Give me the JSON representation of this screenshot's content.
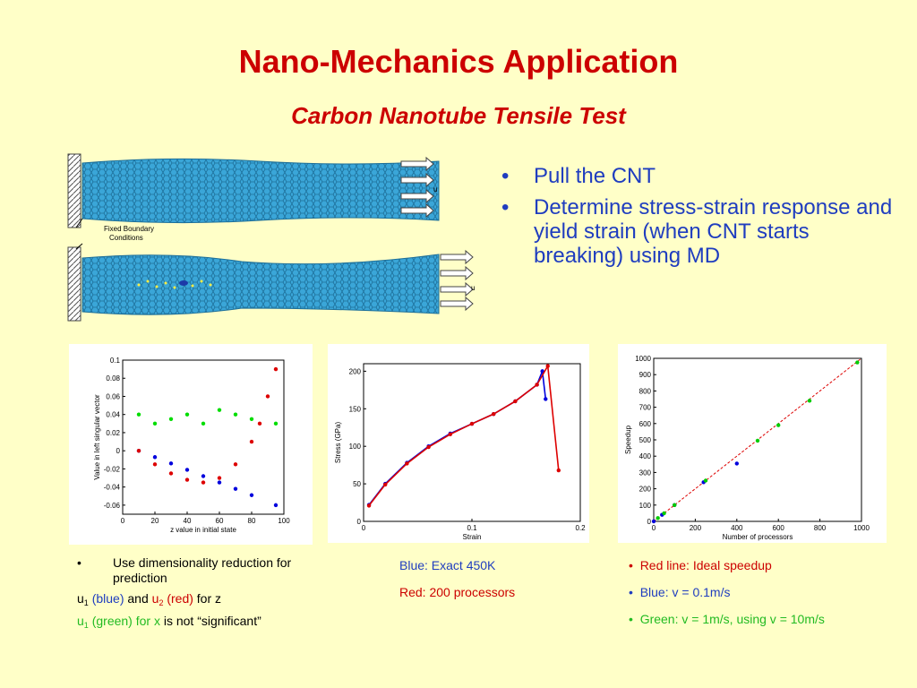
{
  "slide": {
    "title": "Nano-Mechanics Application",
    "subtitle": "Carbon Nanotube Tensile Test",
    "bullets": [
      "Pull the CNT",
      "Determine stress-strain response and yield strain (when CNT starts breaking) using MD"
    ]
  },
  "cnt_figure": {
    "label": "Fixed Boundary Conditions",
    "label_line1": "Fixed Boundary",
    "label_line2": "Conditions",
    "u_label": "u",
    "tube_color": "#3aa6d8"
  },
  "captions": {
    "left_bullet": "Use dimensionality reduction for prediction",
    "left_line1": {
      "u": "u",
      "sub1": "1",
      "blue": "(blue)",
      "and": "and",
      "u2": "u",
      "sub2": "2",
      "red": "(red)",
      "forz": "for z"
    },
    "left_line2": {
      "u": "u",
      "sub": "1",
      "green": "(green) for x",
      "tail": "is not “significant”"
    },
    "middle": [
      "Blue: Exact 450K",
      "Red: 200 processors"
    ],
    "right": [
      "Red line: Ideal speedup",
      "Blue: v = 0.1m/s",
      "Green: v = 1m/s, using v = 10m/s"
    ]
  },
  "chart_data": [
    {
      "type": "scatter",
      "xlabel": "z value in initial state",
      "ylabel": "Value in left singular vector",
      "xlim": [
        0,
        100
      ],
      "ylim": [
        -0.07,
        0.1
      ],
      "xticks": [
        0,
        20,
        40,
        60,
        80,
        100
      ],
      "yticks": [
        -0.06,
        -0.04,
        -0.02,
        0,
        0.02,
        0.04,
        0.06,
        0.08,
        0.1
      ],
      "series": [
        {
          "color": "#0000dd",
          "x": [
            10,
            20,
            30,
            40,
            50,
            60,
            70,
            80,
            95
          ],
          "y": [
            0.0,
            -0.007,
            -0.014,
            -0.021,
            -0.028,
            -0.035,
            -0.042,
            -0.049,
            -0.06
          ]
        },
        {
          "color": "#dd0000",
          "x": [
            10,
            20,
            30,
            40,
            50,
            60,
            70,
            80,
            85,
            90,
            95
          ],
          "y": [
            0.0,
            -0.015,
            -0.025,
            -0.032,
            -0.035,
            -0.03,
            -0.015,
            0.01,
            0.03,
            0.06,
            0.09
          ]
        },
        {
          "color": "#00dd00",
          "x": [
            10,
            20,
            30,
            40,
            50,
            60,
            70,
            80,
            95
          ],
          "y": [
            0.04,
            0.03,
            0.035,
            0.04,
            0.03,
            0.045,
            0.04,
            0.035,
            0.03
          ]
        }
      ]
    },
    {
      "type": "line",
      "xlabel": "Strain",
      "ylabel": "Stress (GPa)",
      "xlim": [
        0,
        0.2
      ],
      "ylim": [
        0,
        210
      ],
      "xticks": [
        0,
        0.1,
        0.2
      ],
      "yticks": [
        0,
        50,
        100,
        150,
        200
      ],
      "series": [
        {
          "color": "#0000dd",
          "x": [
            0.005,
            0.02,
            0.04,
            0.06,
            0.08,
            0.1,
            0.12,
            0.14,
            0.16,
            0.165,
            0.168
          ],
          "y": [
            22,
            50,
            78,
            100,
            117,
            130,
            143,
            160,
            182,
            200,
            163
          ]
        },
        {
          "color": "#dd0000",
          "x": [
            0.005,
            0.02,
            0.04,
            0.06,
            0.08,
            0.1,
            0.12,
            0.14,
            0.16,
            0.17,
            0.18
          ],
          "y": [
            21,
            49,
            77,
            99,
            116,
            130,
            143,
            160,
            182,
            207,
            68
          ]
        }
      ]
    },
    {
      "type": "scatter",
      "xlabel": "Number of processors",
      "ylabel": "Speedup",
      "xlim": [
        0,
        1000
      ],
      "ylim": [
        0,
        1000
      ],
      "xticks": [
        0,
        200,
        400,
        600,
        800,
        1000
      ],
      "yticks": [
        0,
        100,
        200,
        300,
        400,
        500,
        600,
        700,
        800,
        900,
        1000
      ],
      "series": [
        {
          "color": "#dd0000",
          "x": [
            0,
            1000
          ],
          "y": [
            0,
            1000
          ]
        },
        {
          "color": "#0000dd",
          "x": [
            0,
            40,
            100,
            240,
            400
          ],
          "y": [
            0,
            40,
            100,
            240,
            355
          ]
        },
        {
          "color": "#00cc00",
          "x": [
            20,
            50,
            100,
            250,
            500,
            600,
            750,
            980
          ],
          "y": [
            20,
            50,
            100,
            250,
            495,
            590,
            740,
            975
          ]
        }
      ]
    }
  ]
}
